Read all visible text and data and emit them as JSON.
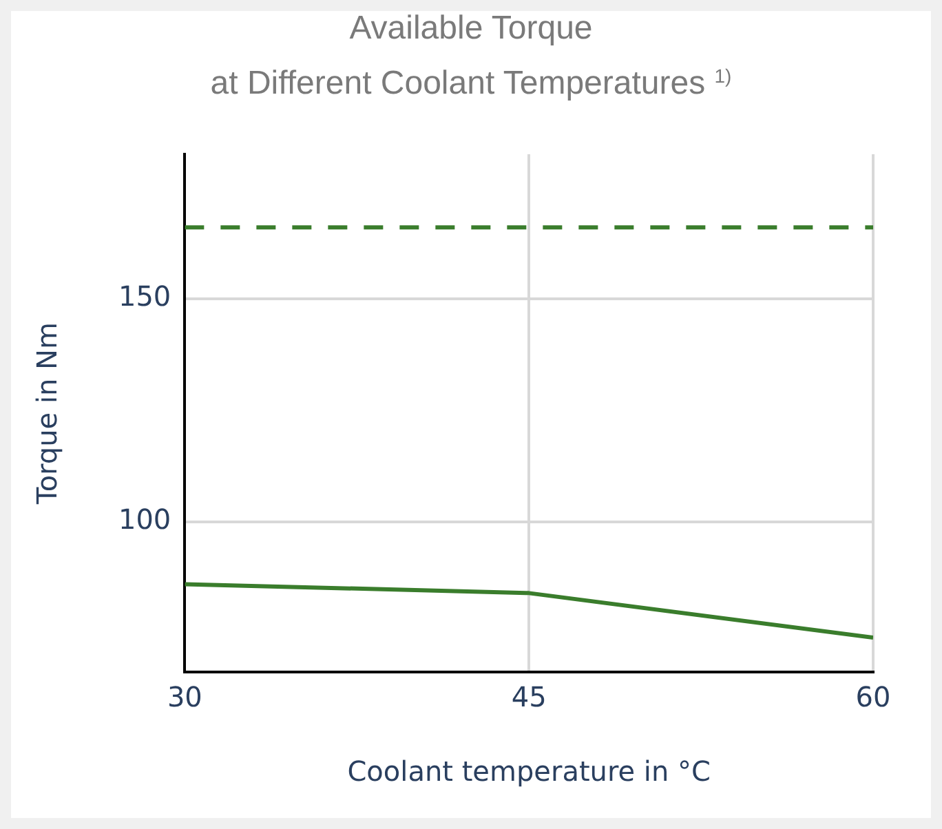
{
  "chart_data": {
    "type": "line",
    "title": "Available Torque\nat Different Coolant Temperatures $^{1)}$",
    "xlabel": "Coolant temperature in °C",
    "ylabel": "Torque in Nm",
    "x": [
      30,
      45,
      60
    ],
    "series": [
      {
        "color": "#3a7d2c",
        "values": [
          166,
          166,
          166
        ],
        "line_style": "dashed"
      },
      {
        "color": "#3a7d2c",
        "values": [
          86,
          84,
          74
        ]
      }
    ],
    "xlim": [
      30,
      60
    ],
    "xticks": [
      30,
      45,
      60
    ],
    "ylim": [
      66.3,
      182.4
    ],
    "yticks": [
      100,
      150
    ],
    "grid": true,
    "legend": false,
    "marker": "none",
    "line_style": "solid"
  }
}
